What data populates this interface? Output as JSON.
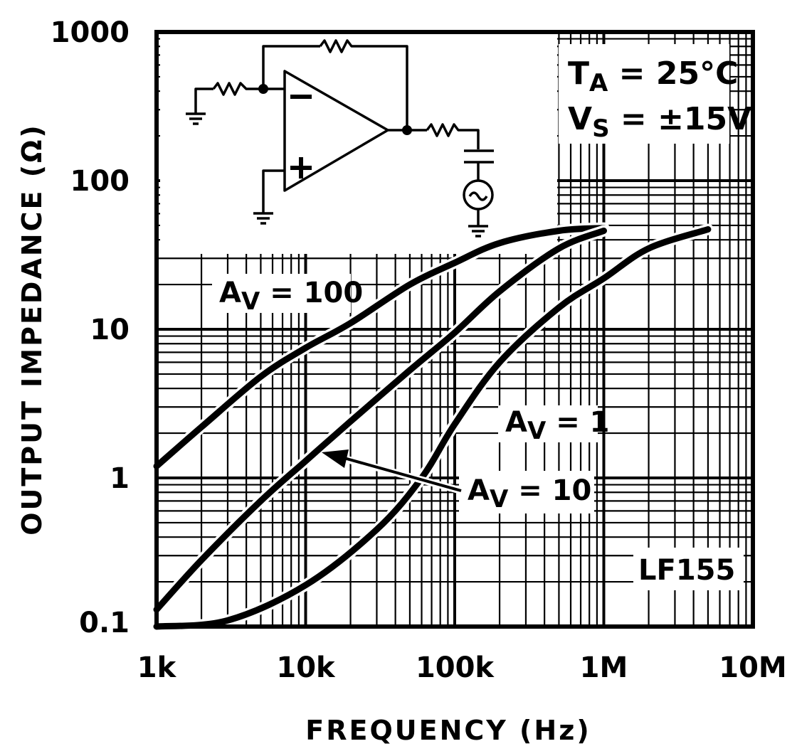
{
  "chart_data": {
    "type": "line",
    "title": "",
    "xlabel": "FREQUENCY (Hz)",
    "ylabel": "OUTPUT IMPEDANCE (Ω)",
    "xscale": "log",
    "yscale": "log",
    "xlim": [
      1000,
      10000000
    ],
    "ylim": [
      0.1,
      1000
    ],
    "grid": true,
    "x_ticks": [
      {
        "value": 1000,
        "label": "1k"
      },
      {
        "value": 10000,
        "label": "10k"
      },
      {
        "value": 100000,
        "label": "100k"
      },
      {
        "value": 1000000,
        "label": "1M"
      },
      {
        "value": 10000000,
        "label": "10M"
      }
    ],
    "y_ticks": [
      {
        "value": 0.1,
        "label": "0.1"
      },
      {
        "value": 1,
        "label": "1"
      },
      {
        "value": 10,
        "label": "10"
      },
      {
        "value": 100,
        "label": "100"
      },
      {
        "value": 1000,
        "label": "1000"
      }
    ],
    "series": [
      {
        "name": "AV = 100",
        "x": [
          1000,
          2000,
          5000,
          10000,
          20000,
          50000,
          100000,
          200000,
          500000,
          1000000
        ],
        "y": [
          1.2,
          2.2,
          4.8,
          7.5,
          11,
          20,
          28,
          38,
          46,
          48
        ]
      },
      {
        "name": "AV = 10",
        "x": [
          1000,
          2000,
          5000,
          10000,
          20000,
          50000,
          100000,
          200000,
          500000,
          1000000
        ],
        "y": [
          0.13,
          0.28,
          0.7,
          1.3,
          2.4,
          5.3,
          9.5,
          18,
          35,
          46
        ]
      },
      {
        "name": "AV = 1",
        "x": [
          1000,
          3000,
          10000,
          30000,
          60000,
          100000,
          200000,
          500000,
          1000000,
          2000000,
          5000000
        ],
        "y": [
          0.1,
          0.11,
          0.19,
          0.45,
          1.0,
          2.3,
          6.0,
          14,
          22,
          35,
          47
        ]
      }
    ],
    "annotations": {
      "av100": {
        "prefix": "A",
        "sub": "V",
        "rest": " = 100"
      },
      "av1": {
        "prefix": "A",
        "sub": "V",
        "rest": " = 1"
      },
      "av10": {
        "prefix": "A",
        "sub": "V",
        "rest": " = 10"
      },
      "part": "LF155",
      "ta": {
        "prefix": "T",
        "sub": "A",
        "rest": " = 25°C"
      },
      "vs": {
        "prefix": "V",
        "sub": "S",
        "rest": " = ±15V"
      }
    }
  }
}
